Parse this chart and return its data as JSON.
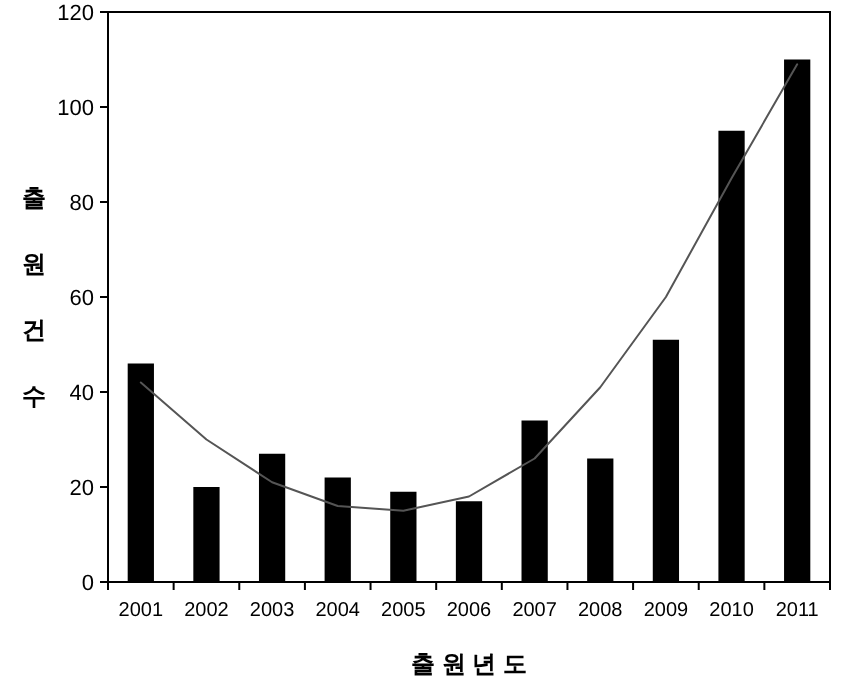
{
  "chart_data": {
    "type": "bar",
    "xlabel": "출 원 년 도",
    "ylabel": "출원건수",
    "categories": [
      "2001",
      "2002",
      "2003",
      "2004",
      "2005",
      "2006",
      "2007",
      "2008",
      "2009",
      "2010",
      "2011"
    ],
    "series": [
      {
        "color": "#000000",
        "values": [
          46,
          20,
          27,
          22,
          19,
          17,
          34,
          26,
          51,
          95,
          110
        ]
      },
      {
        "type": "line",
        "color": "#555555",
        "values": [
          42,
          30,
          21,
          16,
          15,
          18,
          26,
          41,
          60,
          85,
          109
        ]
      }
    ],
    "ylim": [
      0,
      120
    ],
    "yticks": [
      0,
      20,
      40,
      60,
      80,
      100,
      120
    ],
    "grid": false
  }
}
